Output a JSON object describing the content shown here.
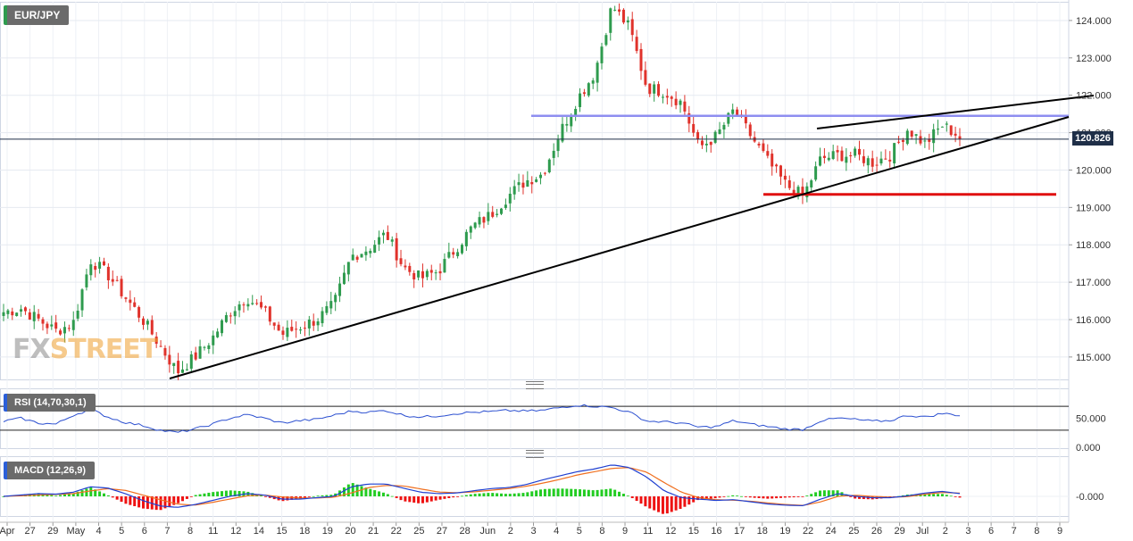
{
  "symbol": "EUR/JPY",
  "last_price": "120.826",
  "logo": {
    "fx": "FX",
    "street": "STREET"
  },
  "colors": {
    "up": "#2e9b4e",
    "down": "#e0322b",
    "rsi": "#2b4fd0",
    "macd": "#1f3fd0",
    "signal": "#f07020",
    "resistance": "#8e8ef0",
    "support": "#e01010",
    "trend": "#000000"
  },
  "chart_data": [
    {
      "type": "candlestick",
      "title": "EUR/JPY",
      "x_labels": [
        "Apr",
        "27",
        "29",
        "May",
        "4",
        "5",
        "6",
        "7",
        "8",
        "11",
        "12",
        "14",
        "15",
        "18",
        "19",
        "20",
        "21",
        "22",
        "25",
        "27",
        "28",
        "Jun",
        "2",
        "3",
        "4",
        "5",
        "8",
        "9",
        "11",
        "12",
        "15",
        "16",
        "17",
        "18",
        "19",
        "22",
        "24",
        "25",
        "26",
        "29",
        "Jul",
        "2",
        "3",
        "6",
        "7",
        "8",
        "9"
      ],
      "y_ticks": [
        "124.000",
        "123.000",
        "122.000",
        "121.000",
        "120.000",
        "119.000",
        "118.000",
        "117.000",
        "116.000",
        "115.000"
      ],
      "ylim": [
        114.4,
        124.5
      ],
      "anchors": [
        116.2,
        116.3,
        116.0,
        115.7,
        115.9,
        117.6,
        117.2,
        116.6,
        116.0,
        115.3,
        114.6,
        115.0,
        115.5,
        116.2,
        116.6,
        116.2,
        115.6,
        115.8,
        116.0,
        116.4,
        117.7,
        117.9,
        118.3,
        117.4,
        117.1,
        117.3,
        117.9,
        118.5,
        118.8,
        119.3,
        119.7,
        119.9,
        121.0,
        121.9,
        122.6,
        124.4,
        123.8,
        122.2,
        122.1,
        121.8,
        120.6,
        120.9,
        121.6,
        120.9,
        120.2,
        119.6,
        119.3,
        120.3,
        120.4,
        120.4,
        120.2,
        120.4,
        121.1,
        120.7,
        121.2,
        120.9
      ],
      "last_close": 120.826,
      "drawings": {
        "resistance": 121.45,
        "support": 119.35
      },
      "grid": true
    },
    {
      "type": "line",
      "title": "RSI (14,70,30,1)",
      "y_ticks": [
        "50.000",
        "0.000"
      ],
      "levels": [
        70,
        30
      ],
      "ylim": [
        0,
        100
      ],
      "anchors": [
        45,
        50,
        42,
        40,
        55,
        65,
        52,
        43,
        38,
        30,
        26,
        32,
        40,
        50,
        56,
        50,
        42,
        46,
        48,
        55,
        62,
        60,
        63,
        55,
        52,
        54,
        58,
        60,
        61,
        63,
        62,
        63,
        68,
        72,
        70,
        68,
        60,
        45,
        44,
        42,
        35,
        36,
        46,
        40,
        36,
        32,
        31,
        46,
        50,
        48,
        45,
        46,
        55,
        52,
        58,
        55
      ]
    },
    {
      "type": "bar+line",
      "title": "MACD (12,26,9)",
      "y_ticks": [
        "-0.000"
      ],
      "macd_anchors": [
        0.0,
        0.05,
        0.1,
        0.08,
        0.15,
        0.35,
        0.3,
        0.1,
        -0.15,
        -0.35,
        -0.4,
        -0.3,
        -0.15,
        0.0,
        0.1,
        0.05,
        -0.1,
        -0.1,
        -0.05,
        0.0,
        0.35,
        0.45,
        0.45,
        0.3,
        0.15,
        0.1,
        0.12,
        0.2,
        0.28,
        0.32,
        0.42,
        0.6,
        0.75,
        0.9,
        1.0,
        1.15,
        1.05,
        0.7,
        0.2,
        -0.05,
        -0.1,
        -0.15,
        -0.12,
        -0.2,
        -0.28,
        -0.32,
        -0.34,
        -0.1,
        0.1,
        0.0,
        -0.05,
        -0.05,
        0.02,
        0.12,
        0.18,
        0.1
      ],
      "signal_anchors": [
        0.0,
        0.02,
        0.05,
        0.07,
        0.1,
        0.2,
        0.28,
        0.22,
        0.05,
        -0.12,
        -0.28,
        -0.32,
        -0.22,
        -0.1,
        0.02,
        0.05,
        -0.02,
        -0.06,
        -0.06,
        -0.03,
        0.12,
        0.32,
        0.4,
        0.38,
        0.27,
        0.16,
        0.13,
        0.16,
        0.22,
        0.28,
        0.36,
        0.48,
        0.62,
        0.78,
        0.9,
        1.02,
        1.05,
        0.88,
        0.5,
        0.15,
        -0.05,
        -0.12,
        -0.14,
        -0.18,
        -0.24,
        -0.3,
        -0.33,
        -0.2,
        0.0,
        0.04,
        0.0,
        -0.03,
        -0.01,
        0.08,
        0.14,
        0.12
      ]
    }
  ]
}
